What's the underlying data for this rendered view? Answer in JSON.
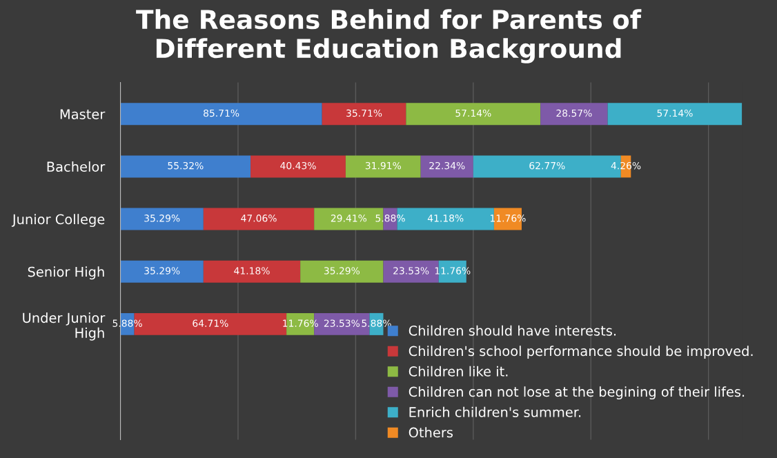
{
  "chart_data": {
    "type": "bar",
    "orientation": "horizontal",
    "stacked": true,
    "title": "The Reasons Behind for Parents of\nDifferent Education Background",
    "categories": [
      "Master",
      "Bachelor",
      "Junior College",
      "Senior High",
      "Under Junior\nHigh"
    ],
    "series": [
      {
        "name": "Children should have interests.",
        "color": "#3f7fce",
        "values": [
          85.71,
          55.32,
          35.29,
          35.29,
          5.88
        ],
        "value_labels": [
          "85.71%",
          "55.32%",
          "35.29%",
          "35.29%",
          "5.88%"
        ]
      },
      {
        "name": "Children's school performance should be improved.",
        "color": "#c8383a",
        "values": [
          35.71,
          40.43,
          47.06,
          41.18,
          64.71
        ],
        "value_labels": [
          "35.71%",
          "40.43%",
          "47.06%",
          "41.18%",
          "64.71%"
        ]
      },
      {
        "name": "Children like it.",
        "color": "#8dba44",
        "values": [
          57.14,
          31.91,
          29.41,
          35.29,
          11.76
        ],
        "value_labels": [
          "57.14%",
          "31.91%",
          "29.41%",
          "35.29%",
          "11.76%"
        ]
      },
      {
        "name": "Children can not lose at the begining of their lifes.",
        "color": "#7e5aa8",
        "values": [
          28.57,
          22.34,
          5.88,
          23.53,
          23.53
        ],
        "value_labels": [
          "28.57%",
          "22.34%",
          "5.88%",
          "23.53%",
          "23.53%"
        ]
      },
      {
        "name": "Enrich children's summer.",
        "color": "#3dafc8",
        "values": [
          57.14,
          62.77,
          41.18,
          11.76,
          5.88
        ],
        "value_labels": [
          "57.14%",
          "62.77%",
          "41.18%",
          "11.76%",
          "5.88%"
        ]
      },
      {
        "name": "Others",
        "color": "#f08a24",
        "values": [
          null,
          4.26,
          11.76,
          null,
          null
        ],
        "value_labels": [
          null,
          "4.26%",
          "11.76%",
          null,
          null
        ]
      }
    ],
    "grid": "x",
    "legend": "bottom right",
    "tick_labels": "y"
  }
}
